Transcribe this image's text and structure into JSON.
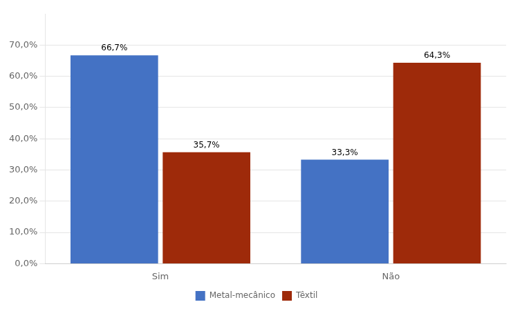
{
  "chart_data": {
    "type": "bar",
    "categories": [
      "Sim",
      "Não"
    ],
    "series": [
      {
        "name": "Metal-mecânico",
        "color": "#4472C4",
        "values": [
          66.7,
          33.3
        ],
        "value_labels": [
          "66,7%",
          "33,3%"
        ]
      },
      {
        "name": "Têxtil",
        "color": "#9E2A0A",
        "values": [
          35.7,
          64.3
        ],
        "value_labels": [
          "35,7%",
          "64,3%"
        ]
      }
    ],
    "ylim": [
      0,
      80
    ],
    "yticks": [
      {
        "value": 0,
        "label": "0,0%"
      },
      {
        "value": 10,
        "label": "10,0%"
      },
      {
        "value": 20,
        "label": "20,0%"
      },
      {
        "value": 30,
        "label": "30,0%"
      },
      {
        "value": 40,
        "label": "40,0%"
      },
      {
        "value": 50,
        "label": "50,0%"
      },
      {
        "value": 60,
        "label": "60,0%"
      },
      {
        "value": 70,
        "label": "70,0%"
      }
    ],
    "grid": true,
    "legend": "bottom",
    "data_labels": true
  }
}
